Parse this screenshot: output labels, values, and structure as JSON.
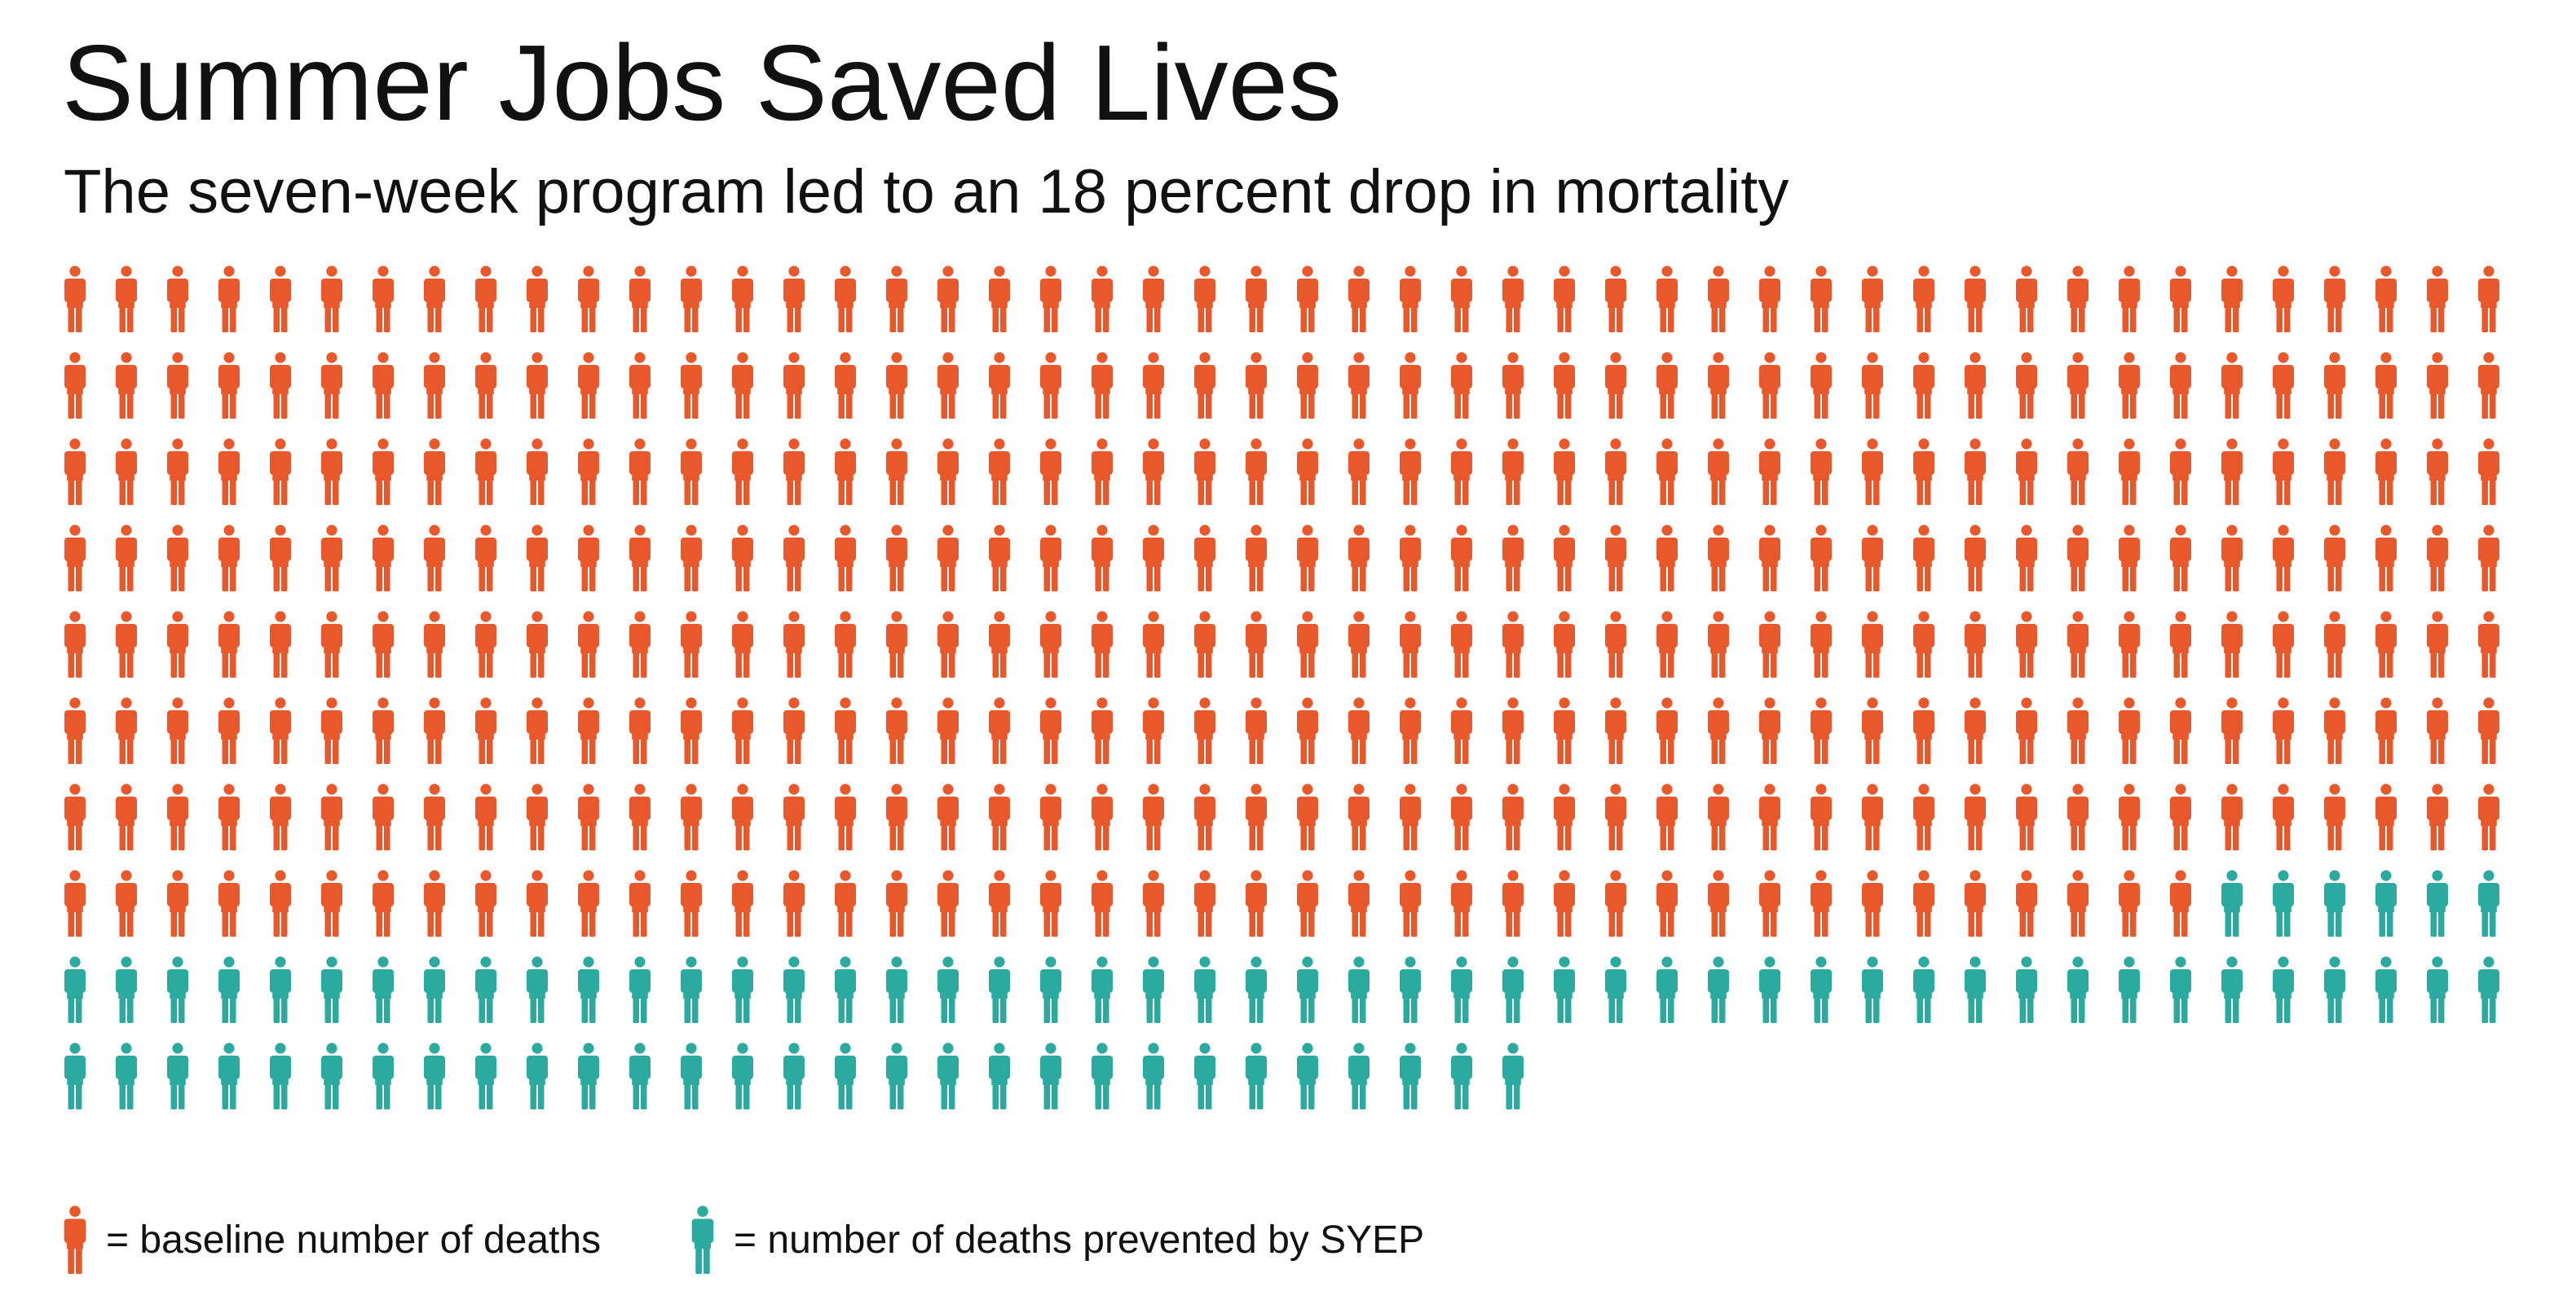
{
  "title": "Summer Jobs Saved Lives",
  "subtitle": "The seven-week program led to an 18 percent drop in mortality",
  "colors": {
    "baseline": "#E8582A",
    "prevented": "#2BAA9F"
  },
  "chart_data": {
    "type": "pictogram",
    "icon": "person-icon",
    "icons_per_row": 48,
    "rows": 10,
    "series": [
      {
        "name": "baseline number of deaths",
        "count": 378,
        "color": "#E8582A"
      },
      {
        "name": "number of deaths prevented by SYEP",
        "count": 83,
        "color": "#2BAA9F"
      }
    ],
    "total": 461
  },
  "legend": {
    "baseline_label": "= baseline number of deaths",
    "prevented_label": "= number of deaths prevented by SYEP"
  }
}
